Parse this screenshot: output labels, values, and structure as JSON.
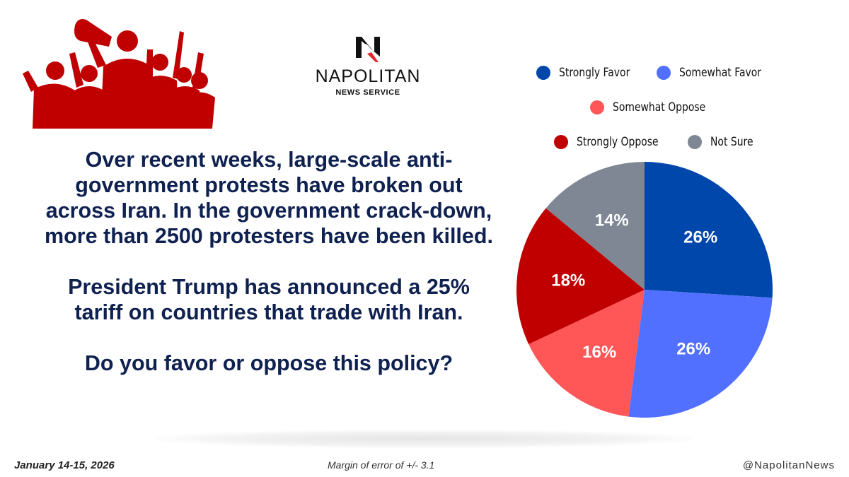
{
  "logo": {
    "name": "NAPOLITAN",
    "subtitle": "NEWS SERVICE"
  },
  "question": {
    "paragraphs": [
      "Over recent weeks, large-scale anti-government protests have broken out across Iran. In the government crack-down, more than 2500 protesters have been killed.",
      "President Trump has announced a 25% tariff on countries that trade with Iran.",
      "Do you favor or oppose this policy?"
    ],
    "color": "#0f2150"
  },
  "footer": {
    "date": "January 14-15, 2026",
    "margin_of_error": "Margin of error of +/- 3.1",
    "handle": "@NapolitanNews"
  },
  "chart_data": {
    "type": "pie",
    "title": "",
    "start": "top",
    "direction": "clockwise",
    "legend_position": "top",
    "categories": [
      "Strongly Favor",
      "Somewhat Favor",
      "Somewhat Oppose",
      "Strongly Oppose",
      "Not Sure"
    ],
    "values": [
      26,
      26,
      16,
      18,
      14
    ],
    "labels": [
      "26%",
      "26%",
      "16%",
      "18%",
      "14%"
    ],
    "colors": [
      "#0047ab",
      "#5170ff",
      "#ff5757",
      "#c00000",
      "#7f8794"
    ]
  }
}
